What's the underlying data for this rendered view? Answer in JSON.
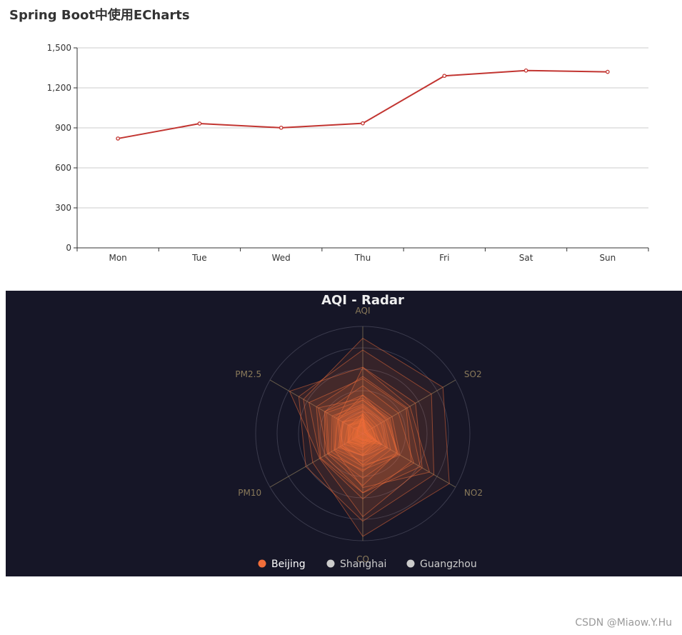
{
  "page": {
    "title": "Spring Boot中使用ECharts",
    "watermark": "CSDN @Miaow.Y.Hu"
  },
  "chart_data": [
    {
      "type": "line",
      "title": "",
      "xlabel": "",
      "ylabel": "",
      "categories": [
        "Mon",
        "Tue",
        "Wed",
        "Thu",
        "Fri",
        "Sat",
        "Sun"
      ],
      "values": [
        820,
        932,
        901,
        934,
        1290,
        1330,
        1320
      ],
      "ylim": [
        0,
        1500
      ],
      "yticks": [
        "0",
        "300",
        "600",
        "900",
        "1,200",
        "1,500"
      ],
      "grid": true,
      "color": "#c23531"
    },
    {
      "type": "radar",
      "title": "AQI - Radar",
      "background": "#161627",
      "indicators": [
        "AQI",
        "SO2",
        "NO2",
        "CO",
        "PM10",
        "PM2.5"
      ],
      "indicator_max": [
        300,
        250,
        300,
        5,
        200,
        100
      ],
      "axis_color": "#8a7a5a",
      "legend": {
        "position": "bottom",
        "items": [
          {
            "name": "Beijing",
            "color": "#f26e3a",
            "active": true
          },
          {
            "name": "Shanghai",
            "color": "#cccccc",
            "active": false
          },
          {
            "name": "Guangzhou",
            "color": "#cccccc",
            "active": false
          }
        ]
      },
      "series": [
        {
          "name": "Beijing",
          "color": "#f26e3a",
          "values": [
            [
              55,
              9,
              56,
              0.46,
              18,
              6
            ],
            [
              25,
              11,
              21,
              0.65,
              34,
              9
            ],
            [
              56,
              7,
              63,
              0.3,
              14,
              5
            ],
            [
              33,
              7,
              29,
              0.33,
              16,
              6
            ],
            [
              42,
              24,
              44,
              0.76,
              40,
              16
            ],
            [
              82,
              58,
              90,
              1.77,
              68,
              33
            ],
            [
              74,
              49,
              77,
              1.46,
              48,
              27
            ],
            [
              78,
              55,
              80,
              1.29,
              59,
              29
            ],
            [
              267,
              216,
              280,
              4.8,
              108,
              64
            ],
            [
              185,
              127,
              216,
              2.52,
              61,
              27
            ],
            [
              39,
              19,
              38,
              0.57,
              31,
              15
            ],
            [
              41,
              11,
              40,
              0.43,
              21,
              7
            ],
            [
              64,
              38,
              74,
              1.04,
              46,
              22
            ],
            [
              108,
              79,
              120,
              1.7,
              75,
              41
            ],
            [
              108,
              63,
              116,
              1.48,
              44,
              26
            ],
            [
              33,
              6,
              29,
              0.34,
              13,
              5
            ],
            [
              94,
              66,
              110,
              1.54,
              62,
              31
            ],
            [
              186,
              142,
              192,
              3.88,
              93,
              79
            ],
            [
              57,
              31,
              54,
              0.96,
              32,
              14
            ],
            [
              22,
              8,
              17,
              0.48,
              23,
              10
            ],
            [
              39,
              15,
              36,
              0.61,
              29,
              13
            ],
            [
              94,
              69,
              114,
              2.08,
              73,
              39
            ],
            [
              99,
              73,
              110,
              2.43,
              76,
              48
            ],
            [
              31,
              12,
              30,
              0.5,
              32,
              16
            ],
            [
              42,
              27,
              43,
              1,
              53,
              22
            ],
            [
              154,
              117,
              157,
              3.05,
              92,
              58
            ],
            [
              234,
              185,
              230,
              4.09,
              123,
              69
            ],
            [
              160,
              120,
              186,
              2.77,
              91,
              50
            ],
            [
              134,
              96,
              165,
              2.76,
              83,
              41
            ],
            [
              52,
              24,
              60,
              1.03,
              50,
              21
            ],
            [
              46,
              5,
              49,
              0.28,
              10,
              6
            ]
          ]
        }
      ]
    }
  ]
}
